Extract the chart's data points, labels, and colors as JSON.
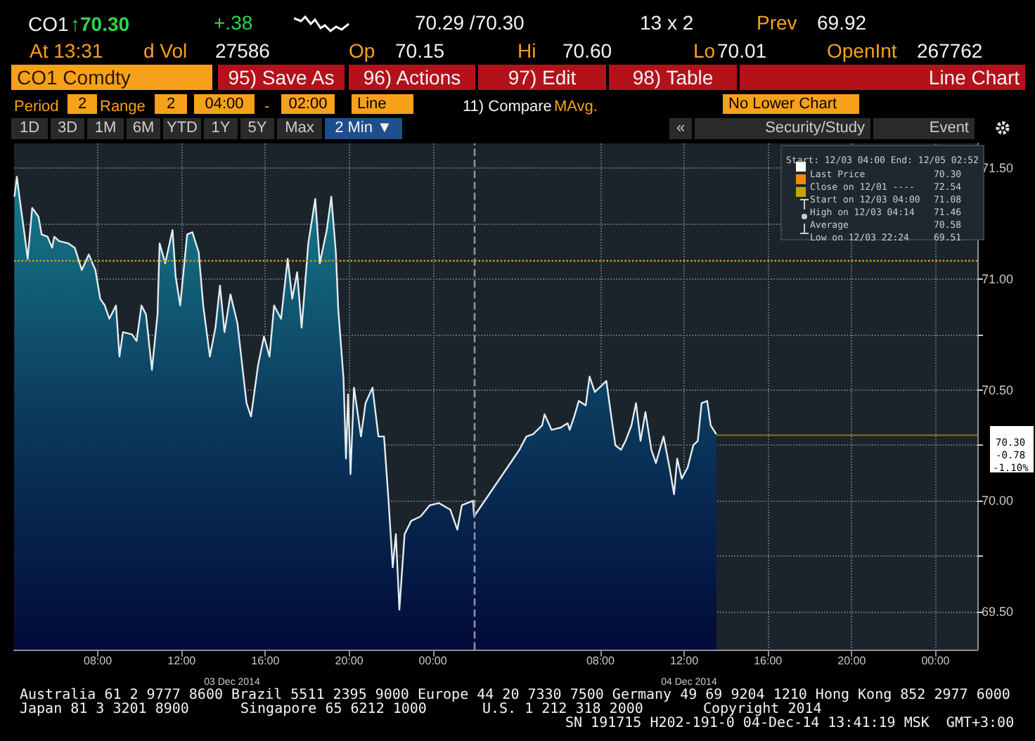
{
  "chart_data": {
    "type": "area",
    "x": [
      "2014-12-03T04:01",
      "2014-12-03T04:08",
      "2014-12-03T04:17",
      "2014-12-03T04:30",
      "2014-12-03T04:39",
      "2014-12-03T04:52",
      "2014-12-03T05:10",
      "2014-12-03T05:19",
      "2014-12-03T05:36",
      "2014-12-03T05:49",
      "2014-12-03T05:55",
      "2014-12-03T06:09",
      "2014-12-03T06:35",
      "2014-12-03T06:54",
      "2014-12-03T07:14",
      "2014-12-03T07:34",
      "2014-12-03T07:53",
      "2014-12-03T08:07",
      "2014-12-03T08:20",
      "2014-12-03T08:33",
      "2014-12-03T08:52",
      "2014-12-03T09:02",
      "2014-12-03T09:12",
      "2014-12-03T09:38",
      "2014-12-03T09:51",
      "2014-12-03T10:05",
      "2014-12-03T10:18",
      "2014-12-03T10:35",
      "2014-12-03T10:51",
      "2014-12-03T10:57",
      "2014-12-03T11:13",
      "2014-12-03T11:34",
      "2014-12-03T11:43",
      "2014-12-03T11:56",
      "2014-12-03T12:16",
      "2014-12-03T12:31",
      "2014-12-03T12:49",
      "2014-12-03T13:02",
      "2014-12-03T13:21",
      "2014-12-03T13:37",
      "2014-12-03T13:50",
      "2014-12-03T14:03",
      "2014-12-03T14:20",
      "2014-12-03T14:40",
      "2014-12-03T15:06",
      "2014-12-03T15:19",
      "2014-12-03T15:39",
      "2014-12-03T15:56",
      "2014-12-03T16:12",
      "2014-12-03T16:25",
      "2014-12-03T16:45",
      "2014-12-03T17:04",
      "2014-12-03T17:17",
      "2014-12-03T17:31",
      "2014-12-03T17:44",
      "2014-12-03T18:03",
      "2014-12-03T18:23",
      "2014-12-03T18:36",
      "2014-12-03T18:56",
      "2014-12-03T19:09",
      "2014-12-03T19:22",
      "2014-12-03T19:29",
      "2014-12-03T19:44",
      "2014-12-03T19:51",
      "2014-12-03T19:57",
      "2014-12-03T20:04",
      "2014-12-03T20:14",
      "2014-12-03T20:34",
      "2014-12-03T20:47",
      "2014-12-03T21:07",
      "2014-12-03T21:24",
      "2014-12-03T21:40",
      "2014-12-03T21:53",
      "2014-12-03T22:05",
      "2014-12-03T22:14",
      "2014-12-03T22:24",
      "2014-12-03T22:39",
      "2014-12-03T22:58",
      "2014-12-03T23:25",
      "2014-12-03T23:51",
      "2014-12-04T00:17",
      "2014-12-04T00:50",
      "2014-12-04T01:10",
      "2014-12-04T01:23",
      "2014-12-04T01:55",
      "2014-12-04T01:58",
      "2014-12-04T04:08",
      "2014-12-04T04:28",
      "2014-12-04T04:47",
      "2014-12-04T05:13",
      "2014-12-04T05:20",
      "2014-12-04T05:40",
      "2014-12-04T06:06",
      "2014-12-04T06:26",
      "2014-12-04T06:32",
      "2014-12-04T06:45",
      "2014-12-04T06:58",
      "2014-12-04T07:18",
      "2014-12-04T07:29",
      "2014-12-04T07:44",
      "2014-12-04T08:04",
      "2014-12-04T08:17",
      "2014-12-04T08:33",
      "2014-12-04T08:43",
      "2014-12-04T08:59",
      "2014-12-04T09:12",
      "2014-12-04T09:29",
      "2014-12-04T09:42",
      "2014-12-04T09:55",
      "2014-12-04T10:09",
      "2014-12-04T10:26",
      "2014-12-04T10:39",
      "2014-12-04T11:01",
      "2014-12-04T11:18",
      "2014-12-04T11:31",
      "2014-12-04T11:40",
      "2014-12-04T11:53",
      "2014-12-04T12:10",
      "2014-12-04T12:26",
      "2014-12-04T12:39",
      "2014-12-04T12:50",
      "2014-12-04T13:06",
      "2014-12-04T13:16",
      "2014-12-04T13:32"
    ],
    "series": [
      {
        "color": "#e4ecf0",
        "values": [
          71.37,
          71.46,
          71.35,
          71.2,
          71.09,
          71.32,
          71.28,
          71.2,
          71.19,
          71.14,
          71.19,
          71.17,
          71.16,
          71.14,
          71.04,
          71.11,
          71.04,
          70.91,
          70.88,
          70.82,
          70.88,
          70.65,
          70.76,
          70.75,
          70.72,
          70.88,
          70.84,
          70.59,
          70.84,
          71.16,
          71.07,
          71.22,
          71.01,
          70.88,
          71.2,
          71.21,
          71.12,
          70.88,
          70.65,
          70.78,
          70.97,
          70.76,
          70.93,
          70.8,
          70.44,
          70.38,
          70.61,
          70.74,
          70.65,
          70.88,
          70.82,
          71.09,
          70.91,
          71.03,
          70.78,
          71.16,
          71.36,
          71.07,
          71.22,
          71.37,
          71.12,
          70.86,
          70.55,
          70.19,
          70.48,
          70.12,
          70.51,
          70.29,
          70.44,
          70.51,
          70.29,
          70.29,
          70.0,
          69.7,
          69.85,
          69.51,
          69.85,
          69.91,
          69.93,
          69.98,
          69.99,
          69.96,
          69.87,
          69.98,
          70.0,
          69.93,
          70.23,
          70.29,
          70.3,
          70.34,
          70.39,
          70.32,
          70.33,
          70.35,
          70.32,
          70.38,
          70.45,
          70.43,
          70.56,
          70.49,
          70.52,
          70.54,
          70.36,
          70.25,
          70.23,
          70.27,
          70.34,
          70.44,
          70.27,
          70.4,
          70.23,
          70.17,
          70.29,
          70.15,
          70.03,
          70.19,
          70.1,
          70.15,
          70.25,
          70.27,
          70.44,
          70.45,
          70.34,
          70.3
        ]
      }
    ],
    "xlim": [
      "2014-12-03T04:00",
      "2014-12-05T02:00"
    ],
    "xticks": [
      {
        "value": "2014-12-03T08:00",
        "label": "08:00"
      },
      {
        "value": "2014-12-03T12:00",
        "label": "12:00"
      },
      {
        "value": "2014-12-03T16:00",
        "label": "16:00"
      },
      {
        "value": "2014-12-03T20:00",
        "label": "20:00"
      },
      {
        "value": "2014-12-04T00:00",
        "label": "00:00"
      },
      {
        "value": "2014-12-04T08:00",
        "label": "08:00"
      },
      {
        "value": "2014-12-04T12:00",
        "label": "12:00"
      },
      {
        "value": "2014-12-04T16:00",
        "label": "16:00"
      },
      {
        "value": "2014-12-04T20:00",
        "label": "20:00"
      },
      {
        "value": "2014-12-05T00:00",
        "label": "00:00"
      }
    ],
    "ylim": [
      69.33,
      71.61
    ],
    "yticks": [
      {
        "value": 69.5,
        "label": "69.50"
      },
      {
        "value": 69.75,
        "label": null
      },
      {
        "value": 70,
        "label": "70.00"
      },
      {
        "value": 70.25,
        "label": null
      },
      {
        "value": 70.5,
        "label": "70.50"
      },
      {
        "value": 70.75,
        "label": null
      },
      {
        "value": 71,
        "label": "71.00"
      },
      {
        "value": 71.25,
        "label": null
      },
      {
        "value": 71.5,
        "label": "71.50"
      }
    ],
    "grid": true,
    "ref_lines": [
      {
        "axis": "y",
        "value": 71.08,
        "color": "#c9a400",
        "line_style": "dotted"
      },
      {
        "axis": "y",
        "value": 70.3,
        "color": "#6e6a1c",
        "line_style": "solid"
      },
      {
        "axis": "x",
        "value": "2014-12-04T02:00",
        "color": "#8c939a",
        "line_style": "dashed"
      }
    ],
    "annotations": [
      "CO1",
      "↑70.30",
      "+.38",
      "70.29 /70.30",
      "13 x 2",
      "Prev",
      "69.92",
      "At 13:31",
      "d Vol",
      "27586",
      "Op",
      "70.15",
      "Hi",
      "70.60",
      "Lo",
      "70.01",
      "OpenInt",
      "267762",
      "CO1 Comdty",
      "95) Save As",
      "96) Actions",
      "97) Edit",
      "98) Table",
      "Line Chart",
      "Period",
      "2",
      "Range",
      "2",
      "04:00",
      "-",
      "02:00",
      "Line",
      "11) Compare",
      "MAvg.",
      "No Lower Chart",
      "1D",
      "3D",
      "1M",
      "6M",
      "YTD",
      "1Y",
      "5Y",
      "Max",
      "2 Min ▼",
      "«",
      "Security/Study",
      "Event",
      "Start: 12/03 04:00 End: 12/05 02:52",
      "Last Price",
      "70.30",
      "Close on 12/01 ----",
      "72.54",
      "Start on 12/03 04:00",
      "71.08",
      "High on 12/03 04:14",
      "71.46",
      "Average",
      "70.58",
      "Low on 12/03 22:24",
      "69.51",
      "70.30",
      "-0.78",
      "-1.10%",
      "03 Dec 2014",
      "04 Dec 2014",
      "Australia 61 2 9777 8600 Brazil 5511 2395 9000 Europe 44 20 7330 7500 Germany 49 69 9204 1210 Hong Kong 852 2977 6000",
      "Japan 81 3 3201 8900",
      "Singapore 65 6212 1000",
      "U.S. 1 212 318 2000",
      "Copyright 2014",
      "SN 191715 H202-191-0 04-Dec-14 13:41:19 MSK  GMT+3:00"
    ]
  }
}
